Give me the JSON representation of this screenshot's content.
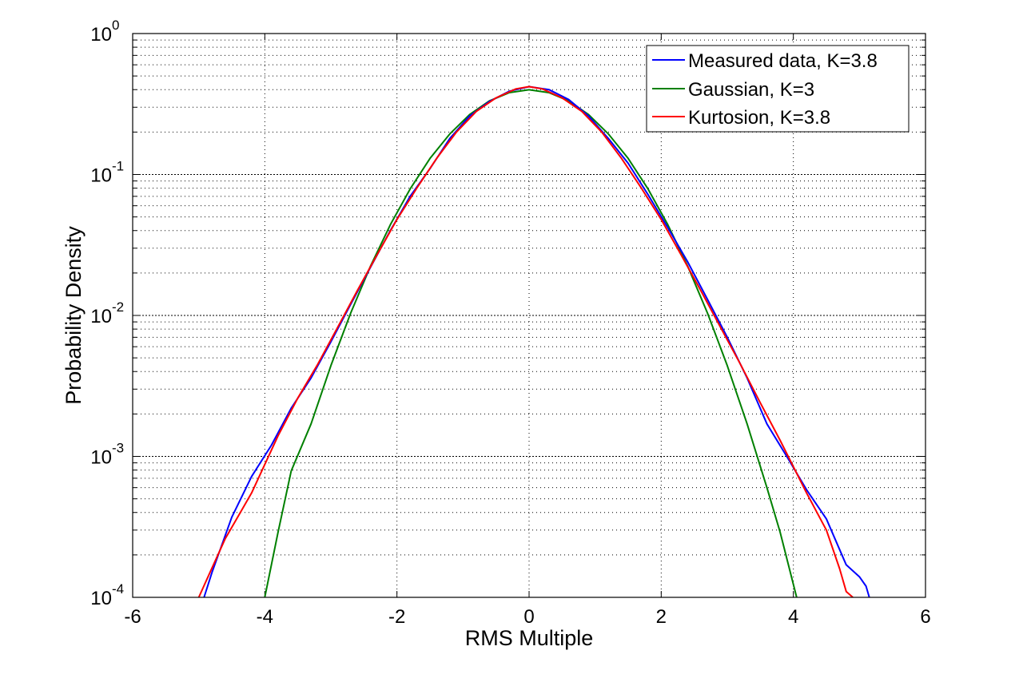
{
  "chart_data": {
    "type": "line",
    "title": "",
    "xlabel": "RMS Multiple",
    "ylabel": "Probability Density",
    "xlim": [
      -6,
      6
    ],
    "ylim": [
      0.0001,
      1
    ],
    "yscale": "log",
    "grid": true,
    "legend_position": "upper right",
    "x_ticks": [
      -6,
      -4,
      -2,
      0,
      2,
      4,
      6
    ],
    "x_tick_labels": [
      "-6",
      "-4",
      "-2",
      "0",
      "2",
      "4",
      "6"
    ],
    "y_ticks": [
      0.0001,
      0.001,
      0.01,
      0.1,
      1
    ],
    "y_tick_labels": [
      {
        "base": "10",
        "exp": "-4"
      },
      {
        "base": "10",
        "exp": "-3"
      },
      {
        "base": "10",
        "exp": "-2"
      },
      {
        "base": "10",
        "exp": "-1"
      },
      {
        "base": "10",
        "exp": "0"
      }
    ],
    "series": [
      {
        "name": "Measured data, K=3.8",
        "color": "#0000ff",
        "x": [
          -4.92,
          -4.8,
          -4.5,
          -4.2,
          -3.9,
          -3.6,
          -3.3,
          -3.0,
          -2.7,
          -2.4,
          -2.1,
          -1.8,
          -1.5,
          -1.2,
          -0.9,
          -0.6,
          -0.3,
          0.0,
          0.3,
          0.6,
          0.9,
          1.2,
          1.5,
          1.8,
          2.1,
          2.4,
          2.7,
          3.0,
          3.3,
          3.6,
          3.9,
          4.2,
          4.5,
          4.8,
          5.0,
          5.1,
          5.15
        ],
        "y": [
          0.0001,
          0.00015,
          0.00037,
          0.00072,
          0.0012,
          0.0022,
          0.0036,
          0.0065,
          0.012,
          0.022,
          0.04,
          0.07,
          0.11,
          0.18,
          0.26,
          0.33,
          0.39,
          0.42,
          0.4,
          0.34,
          0.26,
          0.18,
          0.12,
          0.072,
          0.042,
          0.024,
          0.013,
          0.007,
          0.0036,
          0.0017,
          0.001,
          0.00058,
          0.00036,
          0.00017,
          0.00014,
          0.00012,
          0.0001
        ]
      },
      {
        "name": "Gaussian, K=3",
        "color": "#008000",
        "x": [
          -4.0,
          -3.8,
          -3.6,
          -3.3,
          -3.0,
          -2.7,
          -2.4,
          -2.1,
          -1.8,
          -1.5,
          -1.2,
          -0.9,
          -0.6,
          -0.3,
          0.0,
          0.3,
          0.6,
          0.9,
          1.2,
          1.5,
          1.8,
          2.1,
          2.4,
          2.7,
          3.0,
          3.3,
          3.6,
          3.8,
          4.05
        ],
        "y": [
          0.0001,
          0.00029,
          0.00079,
          0.0017,
          0.0044,
          0.0104,
          0.0224,
          0.044,
          0.079,
          0.13,
          0.194,
          0.266,
          0.333,
          0.381,
          0.399,
          0.381,
          0.333,
          0.266,
          0.194,
          0.13,
          0.079,
          0.044,
          0.0224,
          0.0104,
          0.0044,
          0.0017,
          0.0006,
          0.00029,
          0.0001
        ]
      },
      {
        "name": "Kurtosion, K=3.8",
        "color": "#ff0000",
        "x": [
          -5.0,
          -4.6,
          -4.2,
          -3.8,
          -3.5,
          -3.2,
          -2.9,
          -2.6,
          -2.3,
          -2.0,
          -1.7,
          -1.4,
          -1.1,
          -0.8,
          -0.5,
          -0.2,
          0.0,
          0.2,
          0.5,
          0.8,
          1.1,
          1.4,
          1.7,
          2.0,
          2.3,
          2.6,
          2.9,
          3.2,
          3.5,
          3.8,
          4.2,
          4.5,
          4.7,
          4.8,
          4.9
        ],
        "y": [
          0.0001,
          0.00026,
          0.00055,
          0.0014,
          0.0026,
          0.0045,
          0.0082,
          0.015,
          0.027,
          0.048,
          0.08,
          0.13,
          0.2,
          0.28,
          0.35,
          0.405,
          0.42,
          0.405,
          0.35,
          0.28,
          0.2,
          0.13,
          0.08,
          0.048,
          0.027,
          0.015,
          0.0082,
          0.0045,
          0.0024,
          0.0013,
          0.00055,
          0.0003,
          0.00016,
          0.00011,
          0.0001
        ]
      }
    ]
  }
}
